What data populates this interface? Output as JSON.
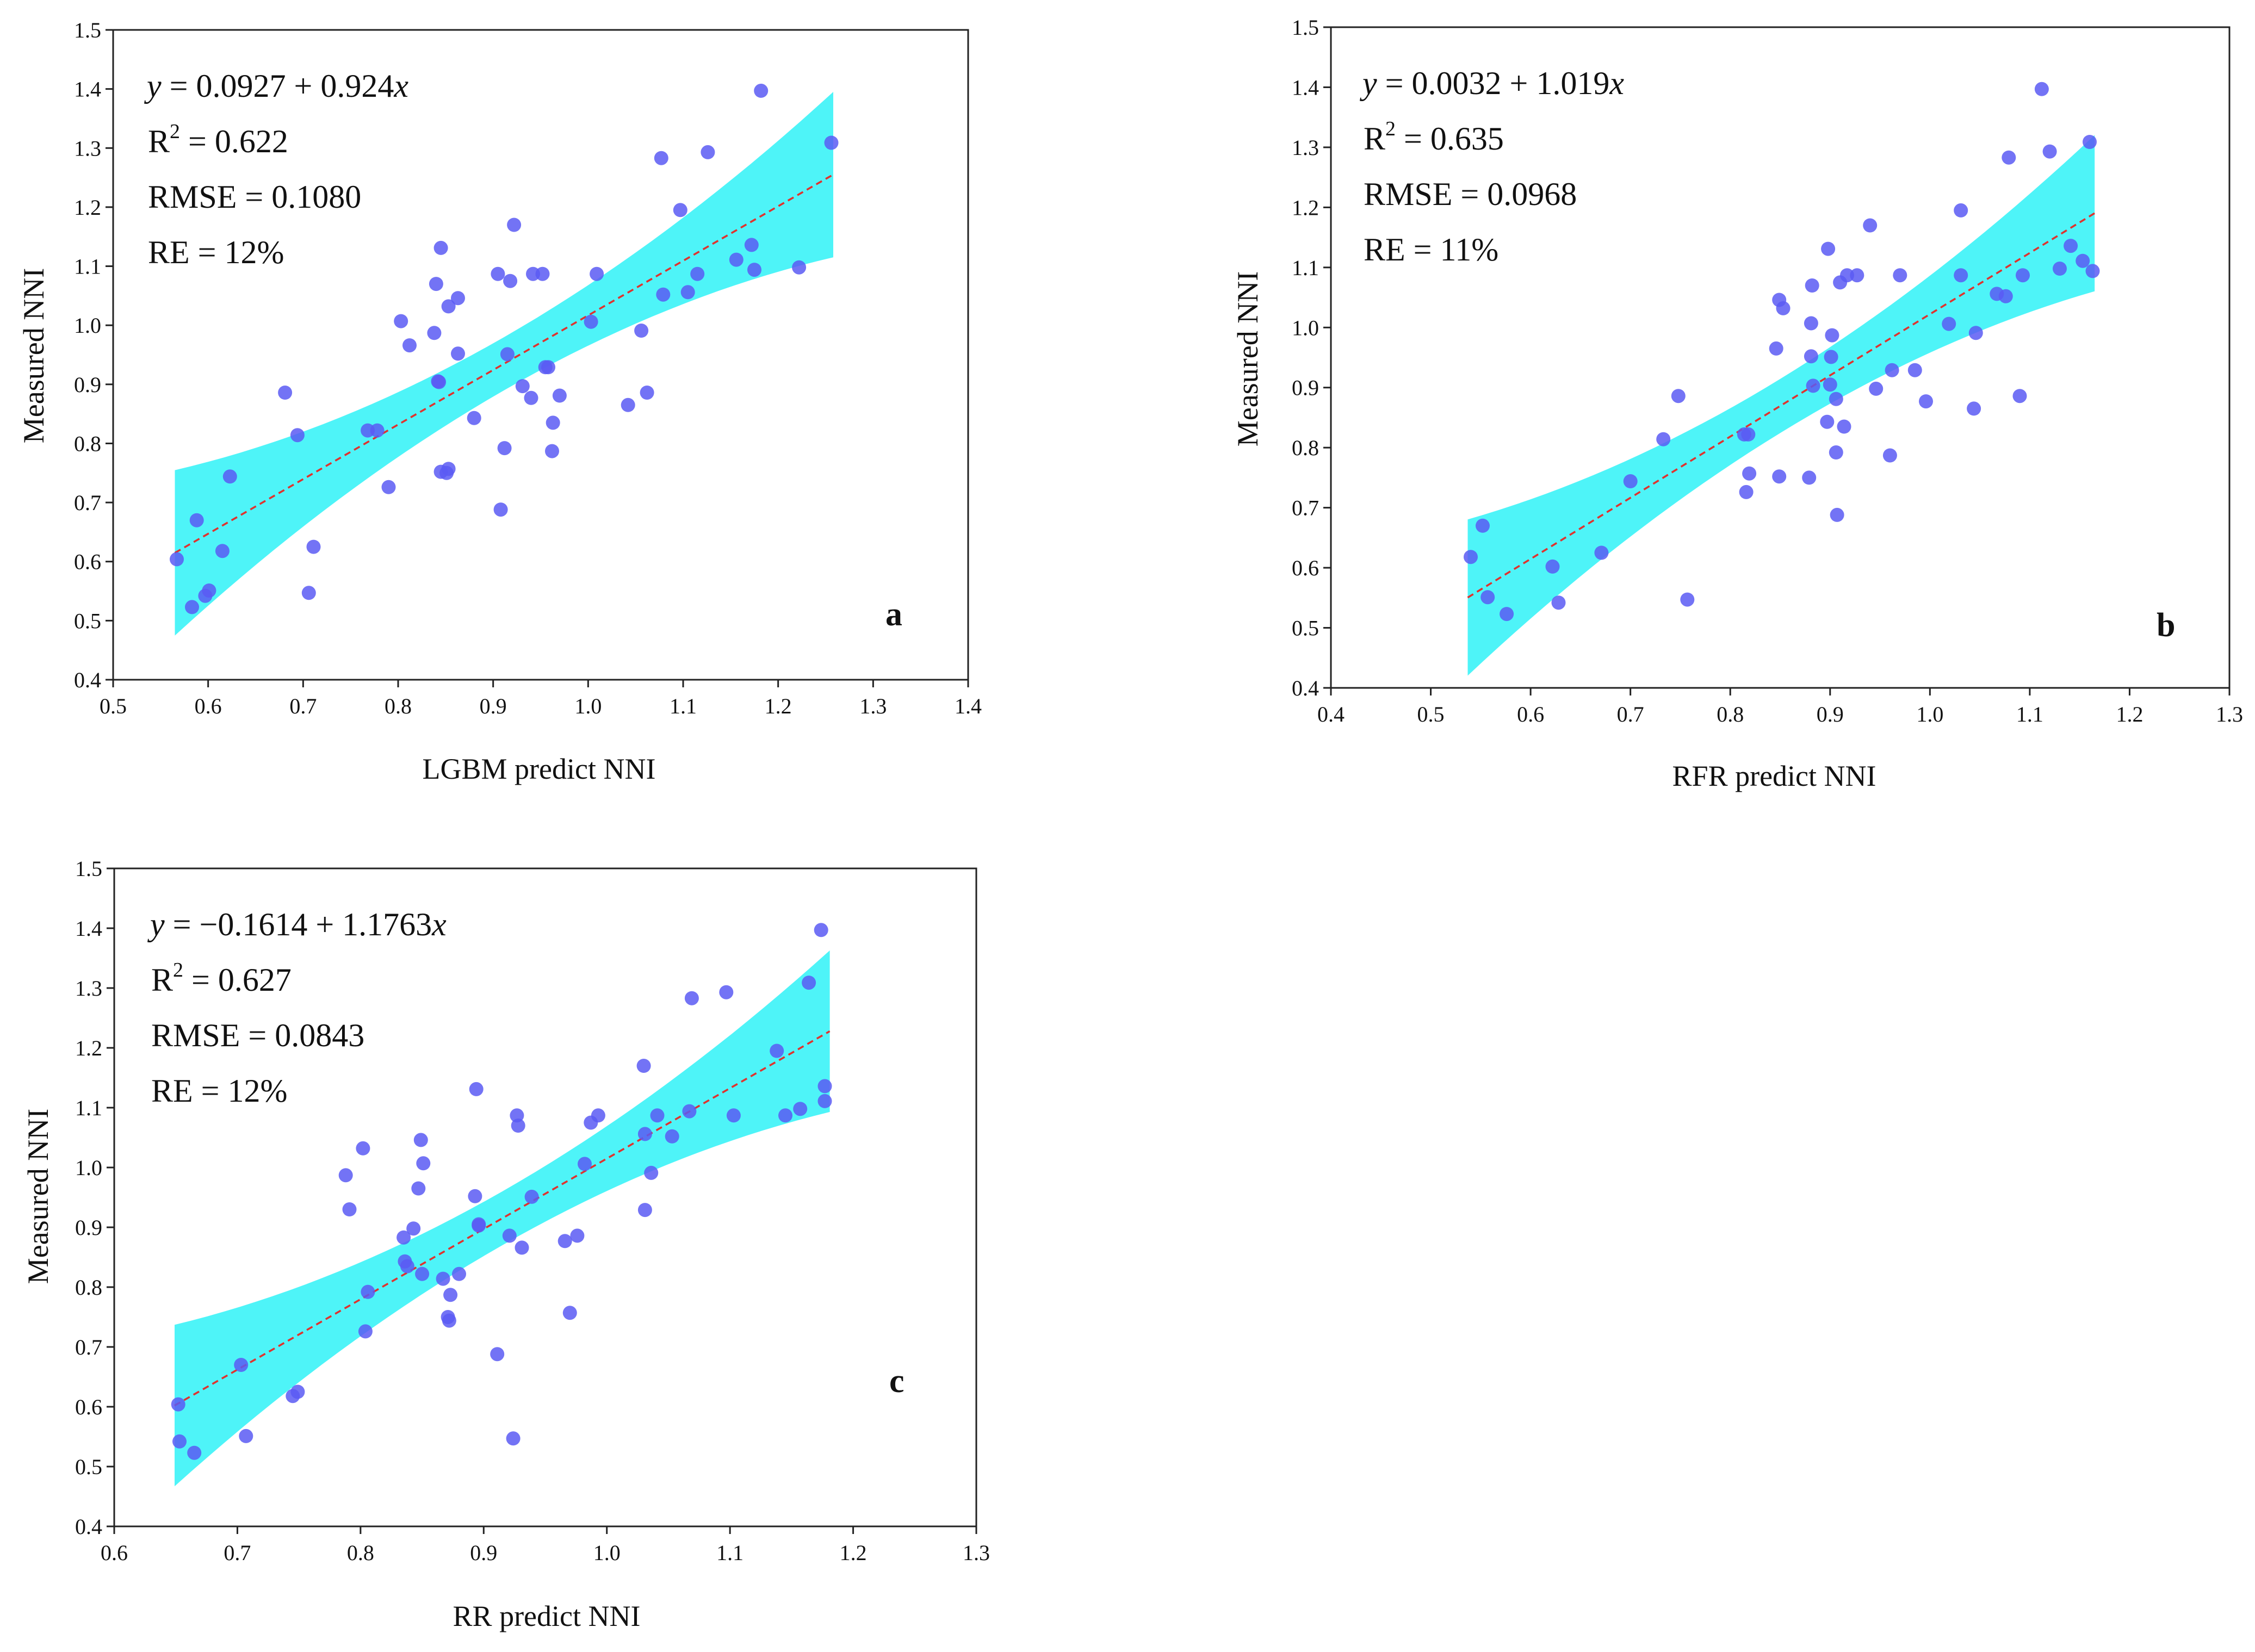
{
  "colors": {
    "point": "#5b5bf3",
    "band": "#2ff2f7",
    "fit_line": "#e0322e",
    "axis": "#222222"
  },
  "chart_data": [
    {
      "type": "scatter",
      "panel_label": "a",
      "xlabel": "LGBM predict NNI",
      "ylabel": "Measured NNI",
      "xlim": [
        0.5,
        1.4
      ],
      "ylim": [
        0.4,
        1.5
      ],
      "xticks": [
        "0.5",
        "0.6",
        "0.7",
        "0.8",
        "0.9",
        "1.0",
        "1.1",
        "1.2",
        "1.3",
        "1.4"
      ],
      "yticks": [
        "0.4",
        "0.5",
        "0.6",
        "0.7",
        "0.8",
        "0.9",
        "1.0",
        "1.1",
        "1.2",
        "1.3",
        "1.4",
        "1.5"
      ],
      "stats": {
        "eq_y": "y",
        "eq_const": " = 0.0927 + 0.924",
        "eq_x": "x",
        "r2_r": "R",
        "r2_sup": "2",
        "r2_val": " = 0.622",
        "rmse": "RMSE = 0.1080",
        "re": "RE = 12%"
      },
      "fit": {
        "intercept": 0.0927,
        "slope": 0.924,
        "x_range": [
          0.565,
          1.258
        ]
      },
      "band": {
        "x_range": [
          0.565,
          1.258
        ],
        "width_min": 0.045,
        "width_max": 0.14
      },
      "points": [
        [
          0.567,
          0.604
        ],
        [
          0.588,
          0.67
        ],
        [
          0.583,
          0.523
        ],
        [
          0.597,
          0.542
        ],
        [
          0.601,
          0.551
        ],
        [
          0.615,
          0.618
        ],
        [
          0.623,
          0.744
        ],
        [
          0.681,
          0.886
        ],
        [
          0.694,
          0.814
        ],
        [
          0.706,
          0.547
        ],
        [
          0.711,
          0.625
        ],
        [
          0.768,
          0.822
        ],
        [
          0.778,
          0.822
        ],
        [
          0.79,
          0.726
        ],
        [
          0.803,
          1.007
        ],
        [
          0.812,
          0.966
        ],
        [
          0.838,
          0.987
        ],
        [
          0.842,
          0.905
        ],
        [
          0.843,
          0.904
        ],
        [
          0.84,
          1.07
        ],
        [
          0.845,
          1.131
        ],
        [
          0.845,
          0.752
        ],
        [
          0.851,
          0.75
        ],
        [
          0.853,
          0.757
        ],
        [
          0.853,
          1.032
        ],
        [
          0.863,
          1.046
        ],
        [
          0.863,
          0.952
        ],
        [
          0.88,
          0.843
        ],
        [
          0.905,
          1.087
        ],
        [
          0.908,
          0.688
        ],
        [
          0.912,
          0.792
        ],
        [
          0.915,
          0.951
        ],
        [
          0.918,
          1.075
        ],
        [
          0.922,
          1.17
        ],
        [
          0.931,
          0.897
        ],
        [
          0.94,
          0.877
        ],
        [
          0.942,
          1.087
        ],
        [
          0.952,
          1.087
        ],
        [
          0.955,
          0.929
        ],
        [
          0.958,
          0.929
        ],
        [
          0.962,
          0.787
        ],
        [
          0.963,
          0.835
        ],
        [
          0.97,
          0.881
        ],
        [
          1.003,
          1.006
        ],
        [
          1.009,
          1.087
        ],
        [
          1.042,
          0.865
        ],
        [
          1.056,
          0.991
        ],
        [
          1.062,
          0.886
        ],
        [
          1.077,
          1.283
        ],
        [
          1.079,
          1.052
        ],
        [
          1.097,
          1.195
        ],
        [
          1.105,
          1.056
        ],
        [
          1.115,
          1.087
        ],
        [
          1.126,
          1.293
        ],
        [
          1.156,
          1.111
        ],
        [
          1.172,
          1.136
        ],
        [
          1.175,
          1.094
        ],
        [
          1.222,
          1.098
        ],
        [
          1.182,
          1.397
        ],
        [
          1.256,
          1.309
        ]
      ]
    },
    {
      "type": "scatter",
      "panel_label": "b",
      "xlabel": "RFR predict NNI",
      "ylabel": "Measured NNI",
      "xlim": [
        0.4,
        1.3
      ],
      "ylim": [
        0.4,
        1.5
      ],
      "xticks": [
        "0.4",
        "0.5",
        "0.6",
        "0.7",
        "0.8",
        "0.9",
        "1.0",
        "1.1",
        "1.2",
        "1.3"
      ],
      "yticks": [
        "0.4",
        "0.5",
        "0.6",
        "0.7",
        "0.8",
        "0.9",
        "1.0",
        "1.1",
        "1.2",
        "1.3",
        "1.4",
        "1.5"
      ],
      "stats": {
        "eq_y": "y",
        "eq_const": " = 0.0032 + 1.019",
        "eq_x": "x",
        "r2_r": "R",
        "r2_sup": "2",
        "r2_val": " = 0.635",
        "rmse": "RMSE = 0.0968",
        "re": "RE = 11%"
      },
      "fit": {
        "intercept": 0.0032,
        "slope": 1.019,
        "x_range": [
          0.537,
          1.165
        ]
      },
      "band": {
        "x_range": [
          0.537,
          1.165
        ],
        "width_min": 0.045,
        "width_max": 0.13
      },
      "points": [
        [
          0.54,
          0.618
        ],
        [
          0.552,
          0.67
        ],
        [
          0.557,
          0.551
        ],
        [
          0.576,
          0.523
        ],
        [
          0.622,
          0.602
        ],
        [
          0.628,
          0.542
        ],
        [
          0.671,
          0.625
        ],
        [
          0.7,
          0.744
        ],
        [
          0.733,
          0.814
        ],
        [
          0.748,
          0.886
        ],
        [
          0.757,
          0.547
        ],
        [
          0.814,
          0.822
        ],
        [
          0.818,
          0.822
        ],
        [
          0.816,
          0.726
        ],
        [
          0.819,
          0.757
        ],
        [
          0.846,
          0.965
        ],
        [
          0.849,
          0.752
        ],
        [
          0.849,
          1.046
        ],
        [
          0.853,
          1.032
        ],
        [
          0.879,
          0.75
        ],
        [
          0.881,
          0.952
        ],
        [
          0.881,
          1.007
        ],
        [
          0.882,
          1.07
        ],
        [
          0.883,
          0.903
        ],
        [
          0.897,
          0.843
        ],
        [
          0.898,
          1.131
        ],
        [
          0.9,
          0.905
        ],
        [
          0.901,
          0.951
        ],
        [
          0.902,
          0.987
        ],
        [
          0.906,
          0.881
        ],
        [
          0.906,
          0.792
        ],
        [
          0.907,
          0.688
        ],
        [
          0.91,
          1.075
        ],
        [
          0.914,
          0.835
        ],
        [
          0.917,
          1.087
        ],
        [
          0.927,
          1.087
        ],
        [
          0.94,
          1.17
        ],
        [
          0.946,
          0.898
        ],
        [
          0.96,
          0.787
        ],
        [
          0.962,
          0.929
        ],
        [
          0.97,
          1.087
        ],
        [
          0.985,
          0.929
        ],
        [
          0.996,
          0.877
        ],
        [
          1.019,
          1.006
        ],
        [
          1.031,
          1.195
        ],
        [
          1.031,
          1.087
        ],
        [
          1.044,
          0.865
        ],
        [
          1.046,
          0.991
        ],
        [
          1.067,
          1.056
        ],
        [
          1.076,
          1.052
        ],
        [
          1.079,
          1.283
        ],
        [
          1.09,
          0.886
        ],
        [
          1.093,
          1.087
        ],
        [
          1.112,
          1.397
        ],
        [
          1.12,
          1.293
        ],
        [
          1.13,
          1.098
        ],
        [
          1.141,
          1.136
        ],
        [
          1.153,
          1.111
        ],
        [
          1.16,
          1.309
        ],
        [
          1.163,
          1.094
        ]
      ]
    },
    {
      "type": "scatter",
      "panel_label": "c",
      "xlabel": "RR predict NNI",
      "ylabel": "Measured NNI",
      "xlim": [
        0.6,
        1.3
      ],
      "ylim": [
        0.4,
        1.5
      ],
      "xticks": [
        "0.6",
        "0.7",
        "0.8",
        "0.9",
        "1.0",
        "1.1",
        "1.2",
        "1.3"
      ],
      "yticks": [
        "0.4",
        "0.5",
        "0.6",
        "0.7",
        "0.8",
        "0.9",
        "1.0",
        "1.1",
        "1.2",
        "1.3",
        "1.4",
        "1.5"
      ],
      "stats": {
        "eq_y": "y",
        "eq_const": " = −0.1614 + 1.1763",
        "eq_x": "x",
        "r2_r": "R",
        "r2_sup": "2",
        "r2_val": " = 0.627",
        "rmse": "RMSE = 0.0843",
        "re": "RE = 12%"
      },
      "fit": {
        "intercept": -0.1614,
        "slope": 1.1763,
        "x_range": [
          0.649,
          1.181
        ]
      },
      "band": {
        "x_range": [
          0.649,
          1.181
        ],
        "width_min": 0.045,
        "width_max": 0.135
      },
      "points": [
        [
          0.652,
          0.604
        ],
        [
          0.653,
          0.542
        ],
        [
          0.665,
          0.523
        ],
        [
          0.703,
          0.67
        ],
        [
          0.707,
          0.551
        ],
        [
          0.745,
          0.618
        ],
        [
          0.749,
          0.625
        ],
        [
          0.788,
          0.987
        ],
        [
          0.791,
          0.93
        ],
        [
          0.802,
          1.032
        ],
        [
          0.804,
          0.726
        ],
        [
          0.806,
          0.792
        ],
        [
          0.835,
          0.883
        ],
        [
          0.836,
          0.843
        ],
        [
          0.838,
          0.835
        ],
        [
          0.843,
          0.898
        ],
        [
          0.847,
          0.965
        ],
        [
          0.849,
          1.046
        ],
        [
          0.85,
          0.822
        ],
        [
          0.851,
          1.007
        ],
        [
          0.867,
          0.814
        ],
        [
          0.871,
          0.75
        ],
        [
          0.872,
          0.744
        ],
        [
          0.873,
          0.787
        ],
        [
          0.88,
          0.822
        ],
        [
          0.893,
          0.952
        ],
        [
          0.894,
          1.131
        ],
        [
          0.896,
          0.903
        ],
        [
          0.896,
          0.905
        ],
        [
          0.911,
          0.688
        ],
        [
          0.921,
          0.886
        ],
        [
          0.924,
          0.547
        ],
        [
          0.927,
          1.087
        ],
        [
          0.928,
          1.07
        ],
        [
          0.931,
          0.866
        ],
        [
          0.939,
          0.951
        ],
        [
          0.966,
          0.877
        ],
        [
          0.97,
          0.757
        ],
        [
          0.976,
          0.886
        ],
        [
          0.982,
          1.006
        ],
        [
          0.987,
          1.075
        ],
        [
          0.993,
          1.087
        ],
        [
          1.03,
          1.17
        ],
        [
          1.031,
          0.929
        ],
        [
          1.031,
          1.056
        ],
        [
          1.036,
          0.991
        ],
        [
          1.041,
          1.087
        ],
        [
          1.053,
          1.052
        ],
        [
          1.067,
          1.094
        ],
        [
          1.069,
          1.283
        ],
        [
          1.097,
          1.293
        ],
        [
          1.103,
          1.087
        ],
        [
          1.138,
          1.195
        ],
        [
          1.145,
          1.087
        ],
        [
          1.157,
          1.098
        ],
        [
          1.164,
          1.309
        ],
        [
          1.174,
          1.397
        ],
        [
          1.177,
          1.136
        ],
        [
          1.177,
          1.111
        ]
      ]
    }
  ]
}
